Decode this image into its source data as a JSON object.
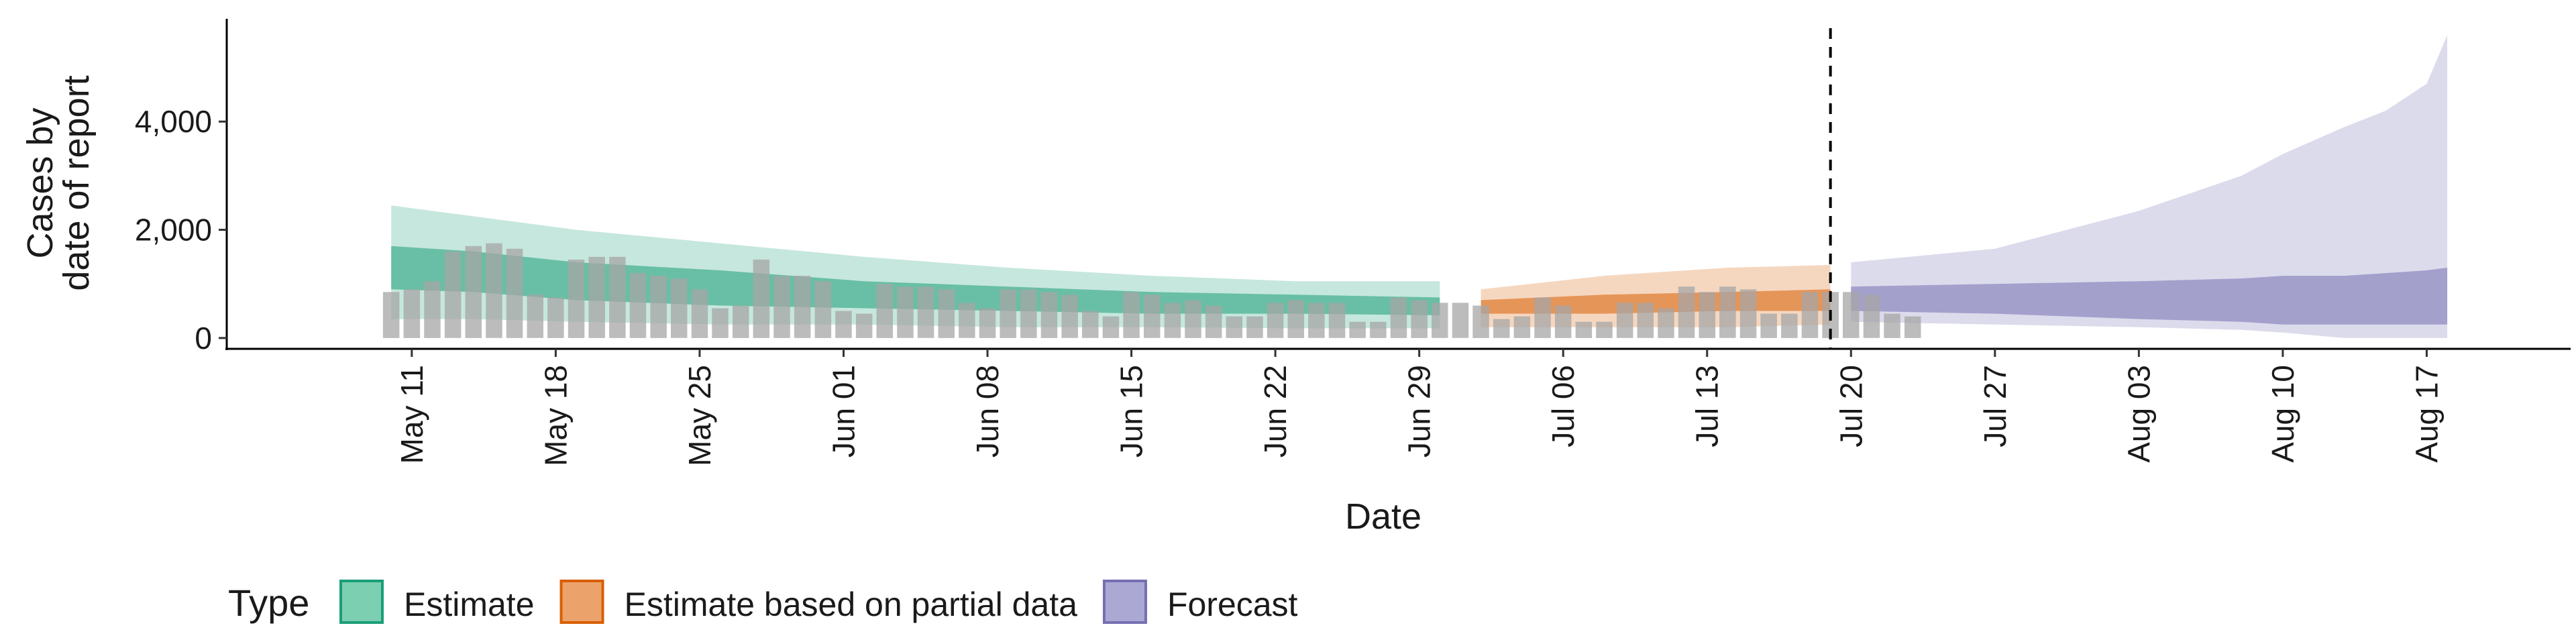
{
  "chart_data": {
    "type": "area",
    "xlabel": "Date",
    "ylabel_lines": [
      "Cases by",
      "date of report"
    ],
    "ylim": [
      -200,
      5900
    ],
    "xlim": [
      "2020-05-02",
      "2020-08-24"
    ],
    "y_ticks": [
      {
        "value": 0,
        "label": "0"
      },
      {
        "value": 2000,
        "label": "2,000"
      },
      {
        "value": 4000,
        "label": "4,000"
      }
    ],
    "x_ticks": [
      {
        "date": "2020-05-11",
        "label": "May 11"
      },
      {
        "date": "2020-05-18",
        "label": "May 18"
      },
      {
        "date": "2020-05-25",
        "label": "May 25"
      },
      {
        "date": "2020-06-01",
        "label": "Jun 01"
      },
      {
        "date": "2020-06-08",
        "label": "Jun 08"
      },
      {
        "date": "2020-06-15",
        "label": "Jun 15"
      },
      {
        "date": "2020-06-22",
        "label": "Jun 22"
      },
      {
        "date": "2020-06-29",
        "label": "Jun 29"
      },
      {
        "date": "2020-07-06",
        "label": "Jul 06"
      },
      {
        "date": "2020-07-13",
        "label": "Jul 13"
      },
      {
        "date": "2020-07-20",
        "label": "Jul 20"
      },
      {
        "date": "2020-07-27",
        "label": "Jul 27"
      },
      {
        "date": "2020-08-03",
        "label": "Aug 03"
      },
      {
        "date": "2020-08-10",
        "label": "Aug 10"
      },
      {
        "date": "2020-08-17",
        "label": "Aug 17"
      }
    ],
    "vline_date": "2020-07-19",
    "reported_cases": {
      "start_date": "2020-05-10",
      "color": "#a6a6a6",
      "values": [
        850,
        900,
        1050,
        1600,
        1700,
        1750,
        1650,
        800,
        750,
        1450,
        1500,
        1500,
        1200,
        1150,
        1100,
        900,
        550,
        600,
        1450,
        1150,
        1150,
        1050,
        500,
        450,
        1000,
        950,
        950,
        900,
        650,
        550,
        900,
        900,
        850,
        800,
        500,
        400,
        850,
        800,
        650,
        700,
        600,
        400,
        400,
        650,
        700,
        650,
        650,
        300,
        300,
        750,
        700,
        650,
        650,
        600,
        350,
        400,
        750,
        600,
        300,
        300,
        650,
        650,
        550,
        950,
        850,
        950,
        900,
        450,
        450,
        850,
        850,
        850,
        800,
        450,
        400
      ]
    },
    "legend": {
      "title": "Type",
      "position": "bottom",
      "entries": [
        {
          "label": "Estimate",
          "fill": "#7ccfb0",
          "stroke": "#1b9e77"
        },
        {
          "label": "Estimate based on partial data",
          "fill": "#eba36b",
          "stroke": "#d95f02"
        },
        {
          "label": "Forecast",
          "fill": "#aba8d4",
          "stroke": "#7570b3"
        }
      ]
    },
    "series": [
      {
        "name": "Estimate",
        "color": "#1b9e77",
        "x": [
          "2020-05-10",
          "2020-05-14",
          "2020-05-19",
          "2020-05-26",
          "2020-06-02",
          "2020-06-09",
          "2020-06-16",
          "2020-06-23",
          "2020-06-30"
        ],
        "outer_lower": [
          350,
          350,
          300,
          250,
          250,
          200,
          200,
          180,
          180
        ],
        "outer_upper": [
          2450,
          2250,
          2000,
          1750,
          1500,
          1300,
          1150,
          1050,
          1050
        ],
        "inner_lower": [
          900,
          850,
          700,
          600,
          550,
          500,
          450,
          450,
          420
        ],
        "inner_upper": [
          1700,
          1600,
          1400,
          1250,
          1050,
          950,
          850,
          800,
          750
        ]
      },
      {
        "name": "Estimate based on partial data",
        "color": "#d95f02",
        "x": [
          "2020-07-02",
          "2020-07-08",
          "2020-07-14",
          "2020-07-19"
        ],
        "outer_lower": [
          200,
          200,
          200,
          250
        ],
        "outer_upper": [
          900,
          1150,
          1300,
          1350
        ],
        "inner_lower": [
          450,
          450,
          500,
          500
        ],
        "inner_upper": [
          700,
          800,
          850,
          900
        ]
      },
      {
        "name": "Forecast",
        "color": "#7570b3",
        "x": [
          "2020-07-20",
          "2020-07-27",
          "2020-08-03",
          "2020-08-08",
          "2020-08-10",
          "2020-08-13",
          "2020-08-15",
          "2020-08-17",
          "2020-08-18"
        ],
        "outer_lower": [
          300,
          250,
          200,
          150,
          100,
          0,
          0,
          0,
          0
        ],
        "outer_upper": [
          1400,
          1650,
          2350,
          3000,
          3400,
          3900,
          4200,
          4700,
          5600
        ],
        "inner_lower": [
          500,
          450,
          350,
          300,
          250,
          250,
          250,
          250,
          250
        ],
        "inner_upper": [
          950,
          1000,
          1050,
          1100,
          1150,
          1150,
          1200,
          1250,
          1300
        ]
      }
    ]
  }
}
